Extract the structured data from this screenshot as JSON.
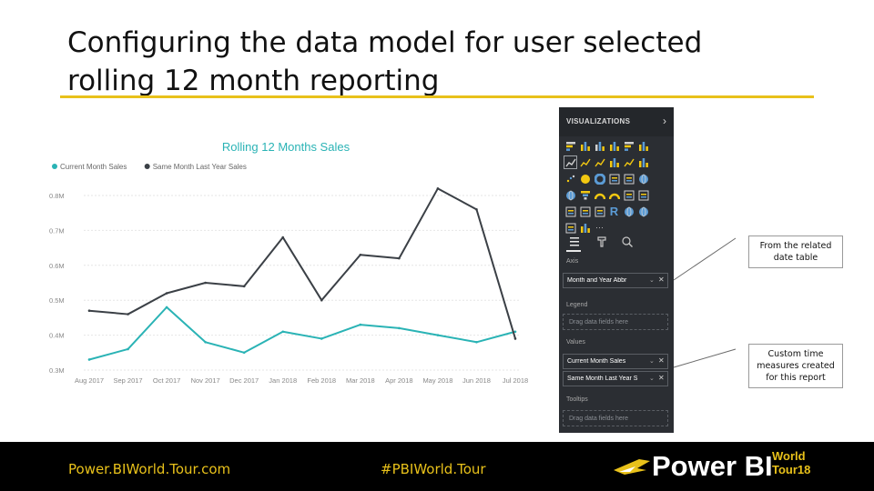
{
  "slide": {
    "title": "Configuring the data model for user selected rolling 12 month reporting"
  },
  "chart_data": {
    "type": "line",
    "title": "Rolling 12 Months Sales",
    "categories": [
      "Aug 2017",
      "Sep 2017",
      "Oct 2017",
      "Nov 2017",
      "Dec 2017",
      "Jan 2018",
      "Feb 2018",
      "Mar 2018",
      "Apr 2018",
      "May 2018",
      "Jun 2018",
      "Jul 2018"
    ],
    "y_ticks": [
      "0.8M",
      "0.7M",
      "0.6M",
      "0.5M",
      "0.4M",
      "0.3M"
    ],
    "ylim": [
      0.3,
      0.8
    ],
    "grid": true,
    "legend_position": "top-left",
    "series": [
      {
        "name": "Current Month Sales",
        "color": "#2ab3b5",
        "values": [
          0.33,
          0.36,
          0.48,
          0.38,
          0.35,
          0.41,
          0.39,
          0.43,
          0.42,
          0.4,
          0.38,
          0.41
        ]
      },
      {
        "name": "Same Month Last Year Sales",
        "color": "#3b4046",
        "values": [
          0.47,
          0.46,
          0.52,
          0.55,
          0.54,
          0.68,
          0.5,
          0.63,
          0.62,
          0.82,
          0.76,
          0.39
        ]
      }
    ]
  },
  "pane": {
    "header": "VISUALIZATIONS",
    "chevron": "›",
    "wells": {
      "axis_label": "Axis",
      "axis_field": "Month and Year Abbr",
      "legend_label": "Legend",
      "legend_placeholder": "Drag data fields here",
      "values_label": "Values",
      "values_fields": [
        "Current Month Sales",
        "Same Month Last Year S"
      ],
      "tooltips_label": "Tooltips",
      "tooltips_placeholder": "Drag data fields here"
    },
    "field_chevron": "⌄",
    "field_remove": "✕",
    "viz_more": "···",
    "viz_r": "R"
  },
  "callouts": {
    "date_table": "From the related date table",
    "time_measures": "Custom time measures created for this report"
  },
  "footer": {
    "site": "Power.BIWorld.Tour.com",
    "hashtag": "#PBIWorld.Tour",
    "logo_main": "Power BI",
    "logo_world": "World",
    "logo_tour": "Tour18",
    "colors": {
      "accent": "#e8c11a",
      "background": "#000000"
    }
  },
  "icons": [
    "visualization-tile-icon",
    "fields-tab-icon",
    "format-tab-icon",
    "analytics-tab-icon",
    "power-bi-logo-icon"
  ]
}
